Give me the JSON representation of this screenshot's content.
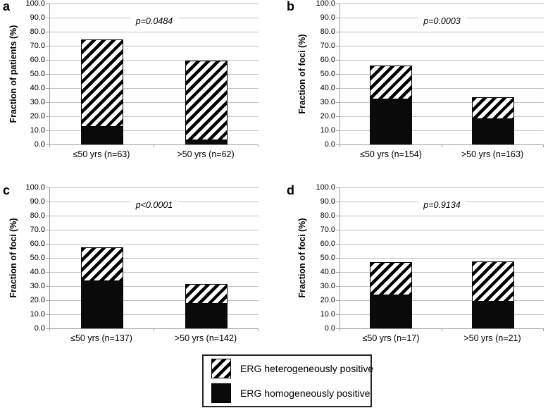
{
  "chart_data": [
    {
      "panel": "a",
      "type": "bar",
      "stacked": true,
      "ylabel": "Fraction of patients (%)",
      "p_value_label": "p=0.0484",
      "categories": [
        "≤50 yrs (n=63)",
        ">50 yrs (n=62)"
      ],
      "series": [
        {
          "name": "ERG homogeneously positive",
          "values": [
            12.7,
            3.2
          ]
        },
        {
          "name": "ERG heterogeneously positive",
          "values": [
            62.0,
            56.5
          ]
        }
      ],
      "stack_totals": [
        74.7,
        59.7
      ],
      "ylim": [
        0,
        100
      ],
      "yticks": [
        "100.0",
        "90.0",
        "80.0",
        "70.0",
        "60.0",
        "50.0",
        "40.0",
        "30.0",
        "20.0",
        "10.0",
        "0.0"
      ],
      "grid": true
    },
    {
      "panel": "b",
      "type": "bar",
      "stacked": true,
      "ylabel": "Fraction of foci (%)",
      "p_value_label": "p=0.0003",
      "categories": [
        "≤50 yrs (n=154)",
        ">50 yrs (n=163)"
      ],
      "series": [
        {
          "name": "ERG homogeneously positive",
          "values": [
            31.8,
            17.8
          ]
        },
        {
          "name": "ERG heterogeneously positive",
          "values": [
            24.0,
            15.9
          ]
        }
      ],
      "stack_totals": [
        55.8,
        33.7
      ],
      "ylim": [
        0,
        100
      ],
      "yticks": [
        "100.0",
        "90.0",
        "80.0",
        "70.0",
        "60.0",
        "50.0",
        "40.0",
        "30.0",
        "20.0",
        "10.0",
        "0.0"
      ],
      "grid": true
    },
    {
      "panel": "c",
      "type": "bar",
      "stacked": true,
      "ylabel": "Fraction of foci (%)",
      "p_value_label": "p<0.0001",
      "categories": [
        "≤50 yrs (n=137)",
        ">50 yrs (n=142)"
      ],
      "series": [
        {
          "name": "ERG homogeneously positive",
          "values": [
            33.6,
            17.6
          ]
        },
        {
          "name": "ERG heterogeneously positive",
          "values": [
            24.1,
            14.1
          ]
        }
      ],
      "stack_totals": [
        57.7,
        31.7
      ],
      "ylim": [
        0,
        100
      ],
      "yticks": [
        "100.0",
        "90.0",
        "80.0",
        "70.0",
        "60.0",
        "50.0",
        "40.0",
        "30.0",
        "20.0",
        "10.0",
        "0.0"
      ],
      "grid": true
    },
    {
      "panel": "d",
      "type": "bar",
      "stacked": true,
      "ylabel": "Fraction of foci (%)",
      "p_value_label": "p=0.9134",
      "categories": [
        "≤50 yrs (n=17)",
        ">50 yrs (n=21)"
      ],
      "series": [
        {
          "name": "ERG homogeneously positive",
          "values": [
            23.5,
            19.0
          ]
        },
        {
          "name": "ERG heterogeneously positive",
          "values": [
            23.6,
            28.6
          ]
        }
      ],
      "stack_totals": [
        47.1,
        47.6
      ],
      "ylim": [
        0,
        100
      ],
      "yticks": [
        "100.0",
        "90.0",
        "80.0",
        "70.0",
        "60.0",
        "50.0",
        "40.0",
        "30.0",
        "20.0",
        "10.0",
        "0.0"
      ],
      "grid": true
    }
  ],
  "legend": {
    "items": [
      {
        "label": "ERG heterogeneously positive",
        "swatch": "hatched-diagonal"
      },
      {
        "label": "ERG homogeneously positive",
        "swatch": "solid-black"
      }
    ]
  },
  "colors": {
    "bar_fill": "#0a0a0a",
    "hatch_stripe": "#000000",
    "hatch_background": "#ffffff",
    "gridline": "#c3c3c3",
    "axis": "#9e9e9e",
    "text": "#000000",
    "background": "#ffffff"
  }
}
